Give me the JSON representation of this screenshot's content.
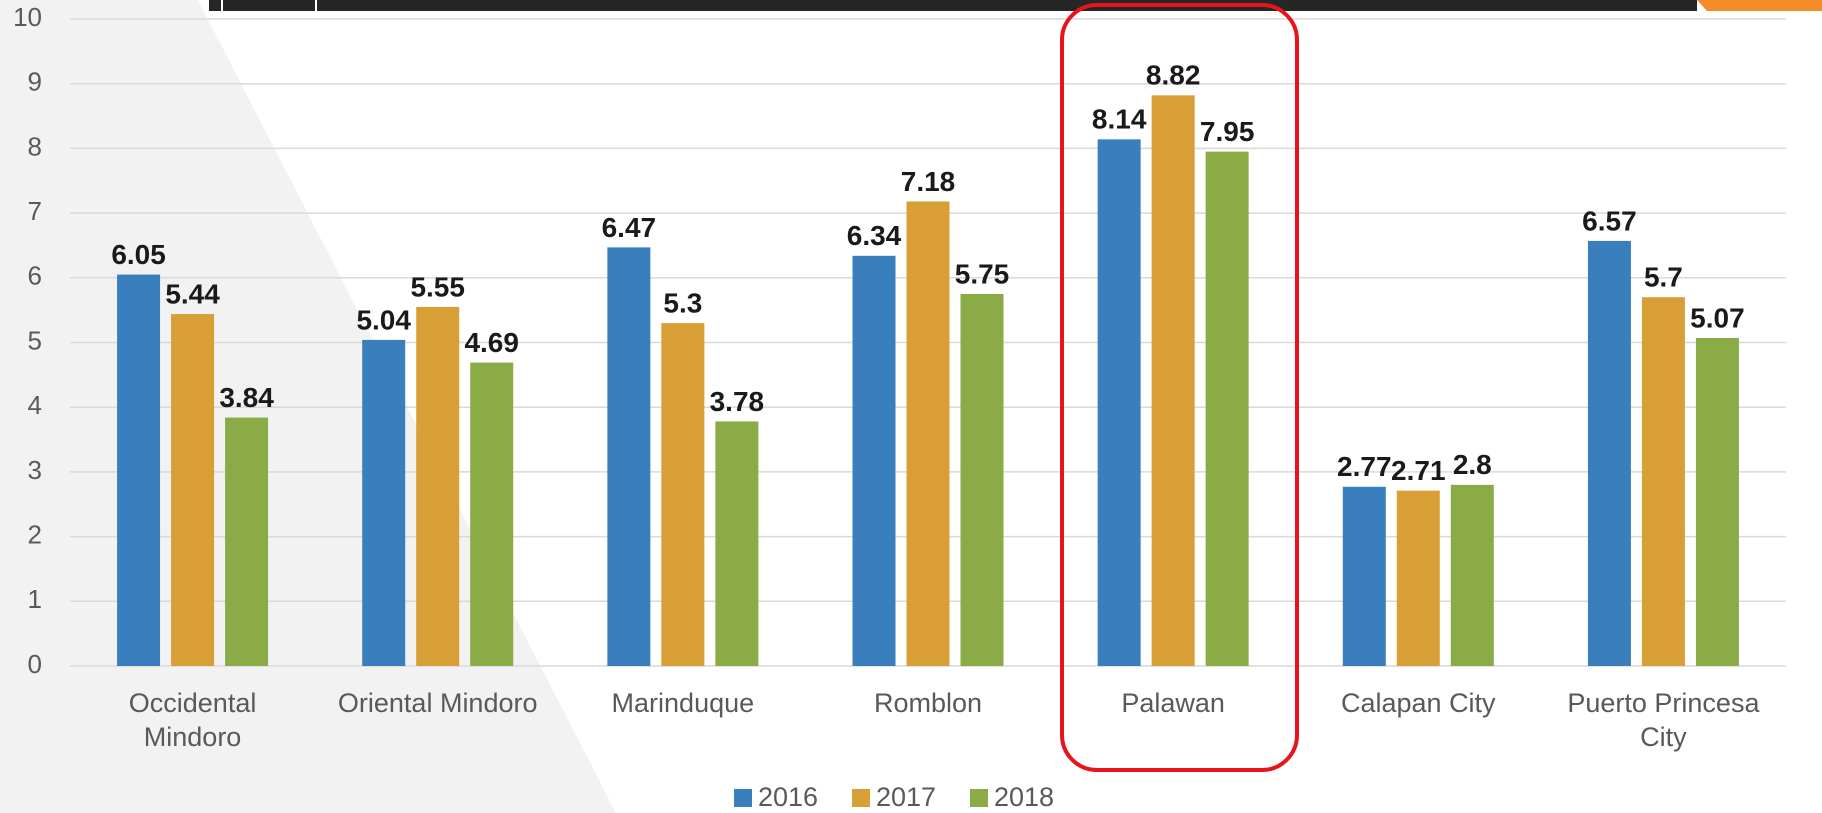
{
  "chart_data": {
    "type": "bar",
    "categories": [
      "Occidental Mindoro",
      "Oriental Mindoro",
      "Marinduque",
      "Romblon",
      "Palawan",
      "Calapan City",
      "Puerto Princesa City"
    ],
    "series": [
      {
        "name": "2016",
        "color": "#3a7fbd",
        "values": [
          6.05,
          5.04,
          6.47,
          6.34,
          8.14,
          2.77,
          6.57
        ]
      },
      {
        "name": "2017",
        "color": "#d89f37",
        "values": [
          5.44,
          5.55,
          5.3,
          7.18,
          8.82,
          2.71,
          5.7
        ]
      },
      {
        "name": "2018",
        "color": "#8aab45",
        "values": [
          3.84,
          4.69,
          3.78,
          5.75,
          7.95,
          2.8,
          5.07
        ]
      }
    ],
    "ylim": [
      0,
      10
    ],
    "yticks": [
      0,
      1,
      2,
      3,
      4,
      5,
      6,
      7,
      8,
      9,
      10
    ],
    "grid": true,
    "legend": "bottom"
  }
}
